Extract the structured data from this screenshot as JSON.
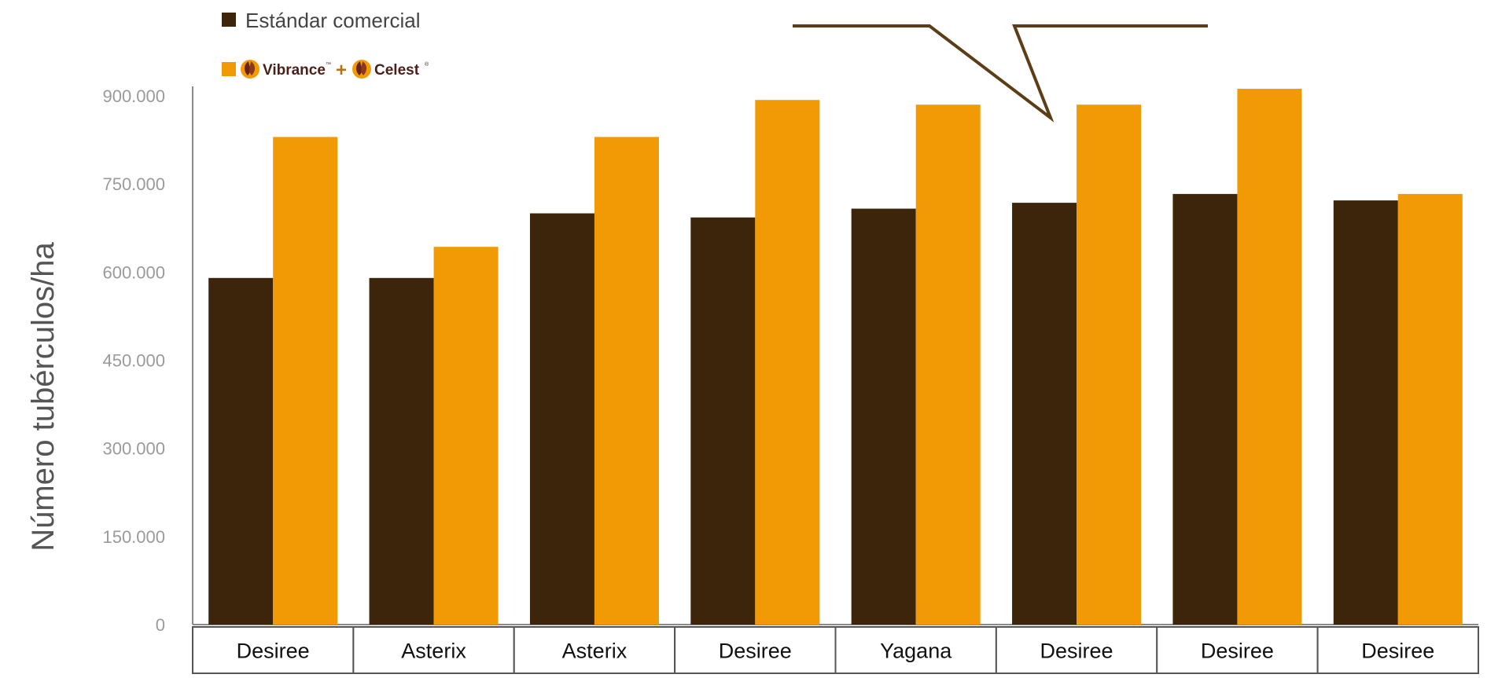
{
  "chart_data": {
    "type": "bar",
    "ylabel": "Número tubérculos/ha",
    "ylim": [
      0,
      900000
    ],
    "yticks": [
      0,
      150000,
      300000,
      450000,
      600000,
      750000,
      900000
    ],
    "ytick_labels": [
      "0",
      "150.000",
      "300.000",
      "450.000",
      "600.000",
      "750.000",
      "900.000"
    ],
    "categories": [
      "Desiree",
      "Asterix",
      "Asterix",
      "Desiree",
      "Yagana",
      "Desiree",
      "Desiree",
      "Desiree"
    ],
    "series": [
      {
        "name": "Estándar comercial",
        "color": "#3d250c",
        "values": [
          590000,
          590000,
          700000,
          693000,
          708000,
          718000,
          733000,
          722000
        ]
      },
      {
        "name": "Vibrance + Celest",
        "color": "#f29a05",
        "values": [
          830000,
          643000,
          830000,
          893000,
          885000,
          885000,
          912000,
          733000
        ]
      }
    ],
    "legend": {
      "position": "top-left",
      "series_1_label": "Estándar comercial",
      "series_2_brand_1": "Vibrance",
      "series_2_plus": "+",
      "series_2_brand_2": "Celest",
      "trademark_1": "™",
      "trademark_2": "®"
    },
    "grid": false,
    "axis_color": "#8a8a8a",
    "callout_color": "#5c3d16"
  }
}
